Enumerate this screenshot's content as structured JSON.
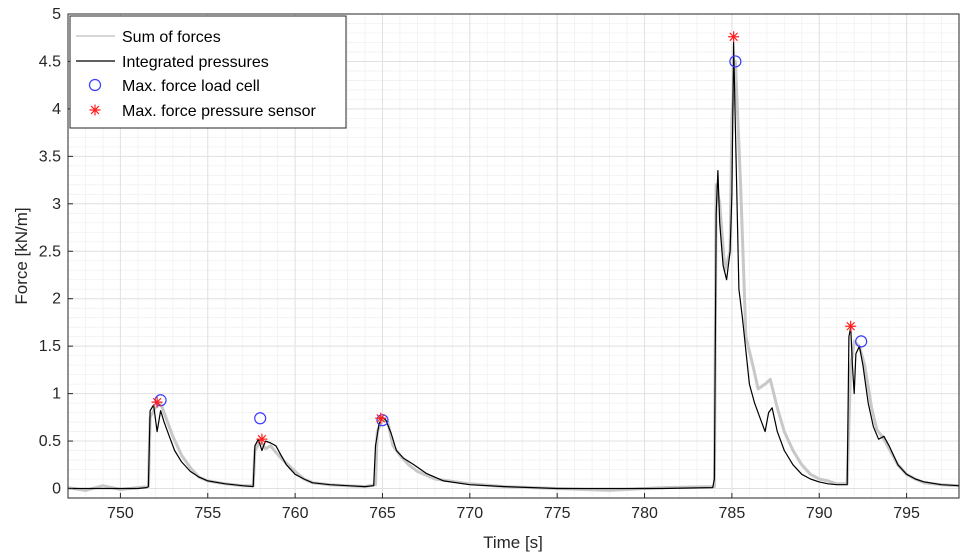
{
  "chart_data": {
    "type": "line",
    "xlabel": "Time [s]",
    "ylabel": "Force [kN/m]",
    "xlim": [
      747,
      798
    ],
    "ylim": [
      -0.1,
      5
    ],
    "xticks": [
      750,
      755,
      760,
      765,
      770,
      775,
      780,
      785,
      790,
      795
    ],
    "yticks": [
      0,
      0.5,
      1,
      1.5,
      2,
      2.5,
      3,
      3.5,
      4,
      4.5,
      5
    ],
    "ytick_labels": [
      "0",
      "0.5",
      "1",
      "1.5",
      "2",
      "2.5",
      "3",
      "3.5",
      "4",
      "4.5",
      "5"
    ],
    "grid": true,
    "minor_grid": true,
    "legend_position": "top-left",
    "series": [
      {
        "name": "Sum of forces",
        "style": "line",
        "color": "#c8c8c8",
        "x": [
          747,
          748,
          749,
          750,
          751,
          751.6,
          751.7,
          752.0,
          752.3,
          752.6,
          753.0,
          753.5,
          754.0,
          754.5,
          755.0,
          756.0,
          757.0,
          757.6,
          757.7,
          758.0,
          758.3,
          758.6,
          758.9,
          759.3,
          760.0,
          760.5,
          761.0,
          762.0,
          763.0,
          764.0,
          764.6,
          764.7,
          765.0,
          765.3,
          765.6,
          766.0,
          766.5,
          767.0,
          768.0,
          770.0,
          772.0,
          775.0,
          778.0,
          781.0,
          784.0,
          784.1,
          784.3,
          784.6,
          784.9,
          785.0,
          785.2,
          785.5,
          785.8,
          786.2,
          786.5,
          786.9,
          787.2,
          787.6,
          788.0,
          788.5,
          789.0,
          789.5,
          790.0,
          790.5,
          791.0,
          791.6,
          791.8,
          791.9,
          792.0,
          792.3,
          792.6,
          793.0,
          793.3,
          793.6,
          794.0,
          794.5,
          795.0,
          795.5,
          796.0,
          797.0,
          798.0
        ],
        "y": [
          0.01,
          -0.02,
          0.03,
          -0.01,
          0.01,
          0.02,
          0.75,
          0.85,
          0.9,
          0.75,
          0.55,
          0.35,
          0.22,
          0.12,
          0.08,
          0.05,
          0.03,
          0.03,
          0.4,
          0.5,
          0.42,
          0.45,
          0.38,
          0.3,
          0.18,
          0.1,
          0.06,
          0.04,
          0.03,
          0.02,
          0.04,
          0.6,
          0.72,
          0.7,
          0.45,
          0.35,
          0.25,
          0.18,
          0.1,
          0.05,
          0.02,
          0.0,
          -0.02,
          0.01,
          0.02,
          3.2,
          3.0,
          2.3,
          2.5,
          3.9,
          4.5,
          3.2,
          1.6,
          1.3,
          1.05,
          1.1,
          1.15,
          0.85,
          0.6,
          0.4,
          0.25,
          0.15,
          0.1,
          0.08,
          0.05,
          0.05,
          1.3,
          1.4,
          1.55,
          1.5,
          1.3,
          0.85,
          0.62,
          0.55,
          0.42,
          0.25,
          0.15,
          0.1,
          0.06,
          0.04,
          0.03
        ]
      },
      {
        "name": "Integrated pressures",
        "style": "line",
        "color": "#000000",
        "x": [
          747,
          748,
          749,
          750,
          751,
          751.5,
          751.6,
          751.7,
          751.9,
          752.1,
          752.3,
          752.5,
          752.8,
          753.1,
          753.5,
          754.0,
          754.5,
          755.0,
          756.0,
          757.0,
          757.6,
          757.7,
          757.9,
          758.1,
          758.3,
          758.6,
          758.9,
          759.2,
          759.5,
          760.0,
          760.5,
          761.0,
          762.0,
          763.0,
          764.0,
          764.5,
          764.6,
          764.8,
          765.0,
          765.2,
          765.5,
          765.8,
          766.2,
          766.8,
          767.5,
          768.5,
          770.0,
          772.0,
          775.0,
          778.0,
          781.0,
          783.9,
          784.0,
          784.1,
          784.2,
          784.3,
          784.5,
          784.7,
          784.9,
          785.0,
          785.1,
          785.2,
          785.4,
          785.6,
          785.8,
          786.0,
          786.3,
          786.6,
          786.9,
          787.1,
          787.3,
          787.6,
          788.0,
          788.5,
          789.0,
          789.5,
          790.0,
          790.5,
          791.0,
          791.6,
          791.7,
          791.8,
          791.9,
          792.0,
          792.1,
          792.3,
          792.5,
          792.8,
          793.1,
          793.4,
          793.7,
          794.0,
          794.5,
          795.0,
          795.5,
          796.0,
          797.0,
          798.0
        ],
        "y": [
          0.0,
          0.0,
          0.0,
          0.0,
          0.0,
          0.01,
          0.02,
          0.82,
          0.88,
          0.6,
          0.82,
          0.7,
          0.55,
          0.4,
          0.28,
          0.18,
          0.12,
          0.08,
          0.05,
          0.03,
          0.02,
          0.45,
          0.52,
          0.4,
          0.5,
          0.48,
          0.45,
          0.35,
          0.25,
          0.15,
          0.1,
          0.06,
          0.04,
          0.03,
          0.02,
          0.03,
          0.45,
          0.68,
          0.75,
          0.72,
          0.58,
          0.4,
          0.32,
          0.25,
          0.16,
          0.08,
          0.04,
          0.02,
          0.0,
          0.0,
          0.0,
          0.01,
          0.1,
          2.9,
          3.35,
          2.8,
          2.35,
          2.2,
          2.5,
          3.1,
          4.7,
          3.8,
          2.1,
          1.8,
          1.45,
          1.1,
          0.9,
          0.75,
          0.6,
          0.8,
          0.85,
          0.6,
          0.4,
          0.25,
          0.15,
          0.1,
          0.07,
          0.05,
          0.04,
          0.04,
          1.6,
          1.7,
          1.3,
          1.0,
          1.42,
          1.5,
          1.3,
          0.9,
          0.65,
          0.52,
          0.55,
          0.45,
          0.25,
          0.15,
          0.1,
          0.07,
          0.04,
          0.03
        ]
      },
      {
        "name": "Max. force load cell",
        "style": "marker-circle",
        "color": "#3b3bff",
        "x": [
          752.3,
          758.0,
          765.0,
          785.2,
          792.4
        ],
        "y": [
          0.93,
          0.74,
          0.72,
          4.5,
          1.55
        ]
      },
      {
        "name": "Max. force pressure sensor",
        "style": "marker-star",
        "color": "#ff2020",
        "x": [
          752.1,
          758.1,
          764.9,
          785.1,
          791.8
        ],
        "y": [
          0.91,
          0.52,
          0.74,
          4.76,
          1.71
        ]
      }
    ]
  }
}
